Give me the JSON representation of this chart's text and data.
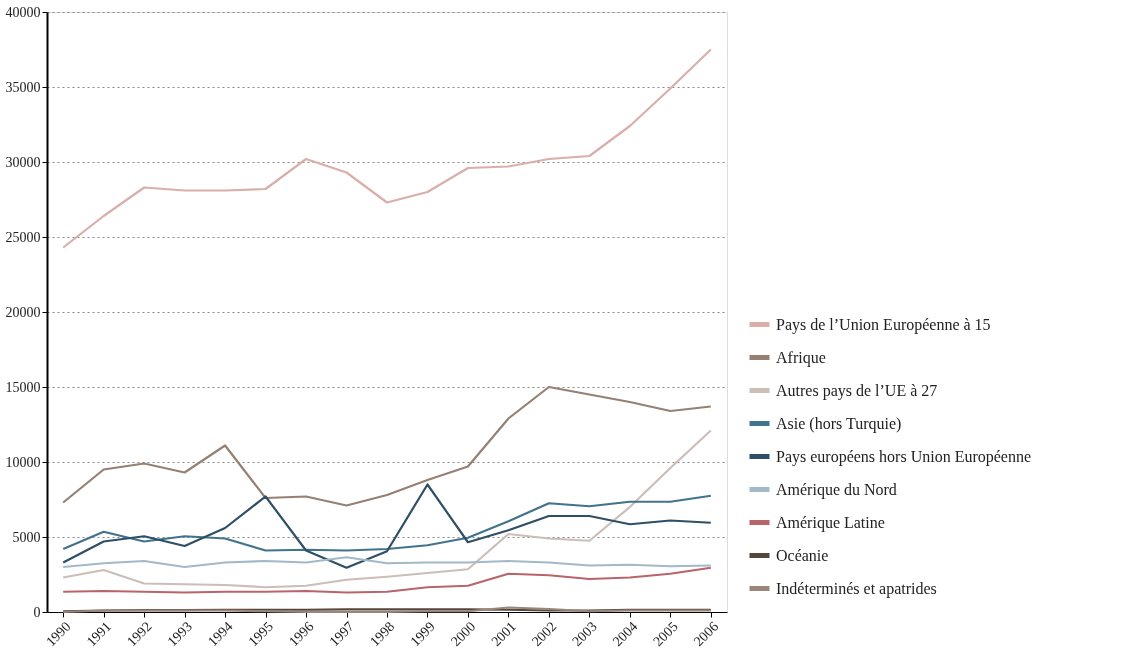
{
  "chart_data": {
    "type": "line",
    "categories": [
      "1990",
      "1991",
      "1992",
      "1993",
      "1994",
      "1995",
      "1996",
      "1997",
      "1998",
      "1999",
      "2000",
      "2001",
      "2002",
      "2003",
      "2004",
      "2005",
      "2006"
    ],
    "series": [
      {
        "name": "Pays de l’Union Européenne à 15",
        "color": "#d9aeab",
        "values": [
          24300,
          26400,
          28300,
          28100,
          28100,
          28200,
          30200,
          29300,
          27300,
          28000,
          29600,
          29700,
          30200,
          30400,
          32400,
          34900,
          37500
        ]
      },
      {
        "name": "Afrique",
        "color": "#958073",
        "values": [
          7300,
          9500,
          9900,
          9300,
          11100,
          7600,
          7700,
          7100,
          7800,
          8800,
          9700,
          12900,
          15000,
          14500,
          14000,
          13400,
          13700
        ]
      },
      {
        "name": "Autres pays de l’UE à 27",
        "color": "#cbbeb8",
        "values": [
          2300,
          2800,
          1900,
          1850,
          1800,
          1650,
          1750,
          2150,
          2350,
          2600,
          2850,
          5200,
          4900,
          4750,
          7000,
          9600,
          12100
        ]
      },
      {
        "name": "Asie (hors Turquie)",
        "color": "#41748c",
        "values": [
          4200,
          5350,
          4700,
          5050,
          4900,
          4100,
          4150,
          4100,
          4200,
          4450,
          4950,
          6050,
          7250,
          7050,
          7350,
          7350,
          7750
        ]
      },
      {
        "name": "Pays européens hors Union Européenne",
        "color": "#2f4f66",
        "values": [
          3300,
          4700,
          5050,
          4400,
          5600,
          7700,
          4100,
          2950,
          4050,
          8500,
          4650,
          5450,
          6400,
          6400,
          5850,
          6100,
          5950
        ]
      },
      {
        "name": "Amérique du Nord",
        "color": "#a3b8c8",
        "values": [
          3000,
          3250,
          3400,
          3000,
          3300,
          3400,
          3300,
          3650,
          3250,
          3300,
          3300,
          3400,
          3300,
          3100,
          3150,
          3050,
          3100
        ]
      },
      {
        "name": "Amérique Latine",
        "color": "#b9636b",
        "values": [
          1350,
          1400,
          1350,
          1300,
          1350,
          1350,
          1400,
          1300,
          1350,
          1650,
          1750,
          2550,
          2450,
          2200,
          2300,
          2550,
          2950
        ]
      },
      {
        "name": "Océanie",
        "color": "#54473e",
        "values": [
          50,
          100,
          120,
          130,
          150,
          150,
          150,
          180,
          170,
          180,
          180,
          150,
          100,
          100,
          150,
          150,
          150
        ]
      },
      {
        "name": "Indéterminés et apatrides",
        "color": "#9a8579",
        "values": [
          0,
          100,
          100,
          100,
          100,
          50,
          0,
          0,
          0,
          50,
          50,
          300,
          200,
          50,
          100,
          100,
          100
        ]
      }
    ],
    "ylim": [
      0,
      40000
    ],
    "yticks": [
      0,
      5000,
      10000,
      15000,
      20000,
      25000,
      30000,
      35000,
      40000
    ],
    "grid": "y",
    "legend": "right",
    "line_style": "solid",
    "marker": "none"
  }
}
